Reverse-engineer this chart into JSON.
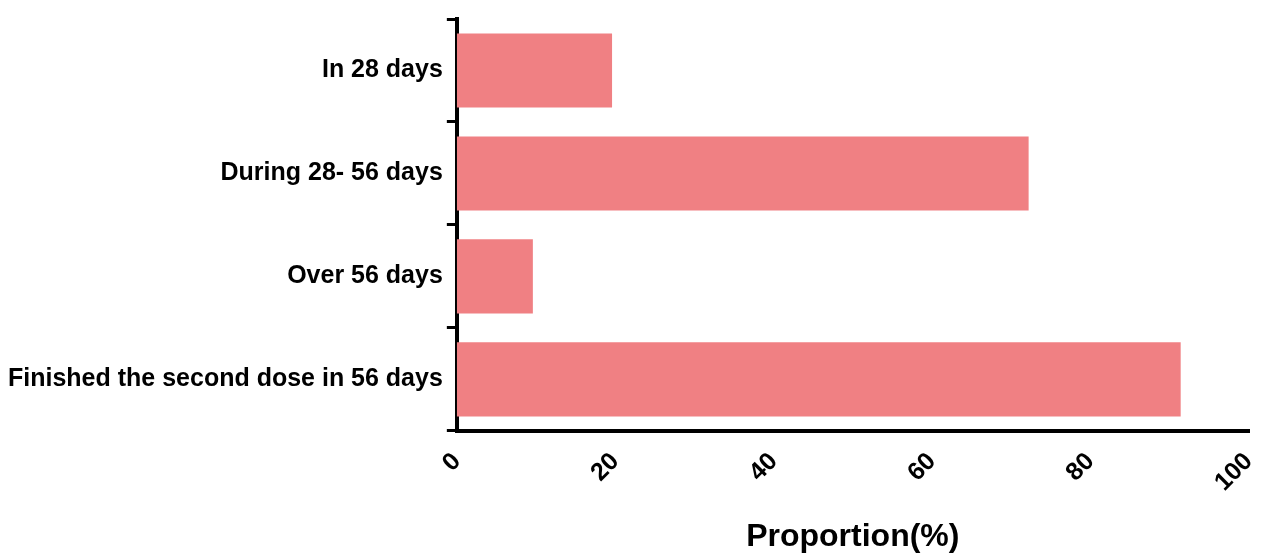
{
  "chart_data": {
    "type": "bar",
    "orientation": "horizontal",
    "categories": [
      "In 28 days",
      "During 28- 56 days",
      "Over 56 days",
      "Finished the second dose in 56 days"
    ],
    "values": [
      19.6,
      72.2,
      9.6,
      91.4
    ],
    "color": "#f08083",
    "xlim": [
      0,
      100
    ],
    "xticks": [
      0,
      20,
      40,
      60,
      80,
      100
    ],
    "xlabel": "Proportion(%)",
    "grid": false,
    "legend": false
  }
}
